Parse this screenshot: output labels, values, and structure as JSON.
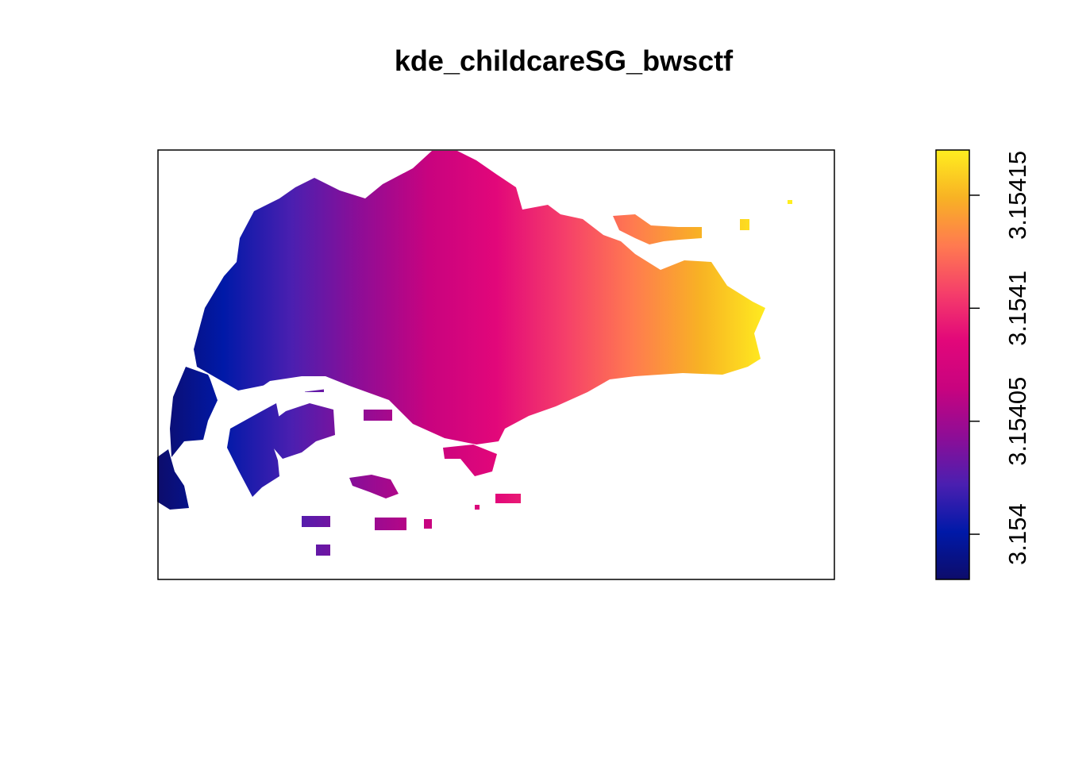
{
  "chart_data": {
    "type": "heatmap",
    "title": "kde_childcareSG_bwsctf",
    "xlabel": "",
    "ylabel": "",
    "axes": "none",
    "value_range": [
      3.15398,
      3.15417
    ],
    "colorbar": {
      "placement": "right",
      "ticks": [
        {
          "value": 3.154,
          "label": "3.154"
        },
        {
          "value": 3.15405,
          "label": "3.15405"
        },
        {
          "value": 3.1541,
          "label": "3.1541"
        },
        {
          "value": 3.15415,
          "label": "3.15415"
        }
      ],
      "colors": [
        "#0d0c6a",
        "#0019a8",
        "#4b1fb0",
        "#8e0d96",
        "#c8037f",
        "#e2077a",
        "#f53e6a",
        "#ff7a50",
        "#f8b224",
        "#ffee1f"
      ]
    }
  }
}
